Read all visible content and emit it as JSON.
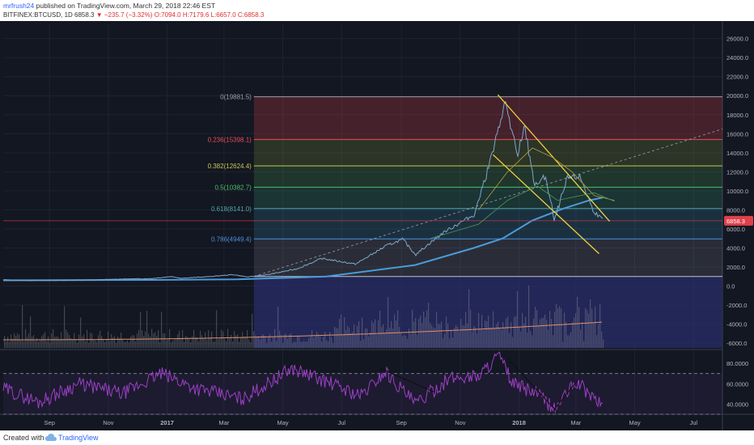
{
  "header": {
    "author": "mrfrush24",
    "published": "published on TradingView.com, March 29, 2018 22:46 EST",
    "symbol": "BITFINEX:BTCUSD, 1D",
    "last": "6858.3",
    "change": "−235.7 (−3.32%)",
    "ohlc": "O:7094.0 H:7179.6 L:6657.0 C:6858.3"
  },
  "footer": {
    "created": "Created with",
    "brand": "TradingView"
  },
  "colors": {
    "background": "#131722",
    "price_line": "#7fa7c8",
    "ma": "#4a9bd8",
    "trend": "#f4d03f",
    "rsi": "#9b3fc5",
    "last_badge": "#e0404a",
    "volume_box": "#2a2e6a"
  },
  "chart_data": [
    {
      "type": "line",
      "title": "",
      "series": [
        {
          "name": "",
          "x": [
            "2016-07-15",
            "2016-08-15",
            "2016-09-15",
            "2016-10-15",
            "2016-11-15",
            "2016-12-15",
            "2017-01-05",
            "2017-01-15",
            "2017-02-15",
            "2017-03-10",
            "2017-03-25",
            "2017-04-15",
            "2017-05-15",
            "2017-06-10",
            "2017-07-15",
            "2017-08-15",
            "2017-09-02",
            "2017-09-15",
            "2017-10-15",
            "2017-11-15",
            "2017-12-07",
            "2017-12-17",
            "2017-12-30",
            "2018-01-06",
            "2018-01-17",
            "2018-01-28",
            "2018-02-06",
            "2018-02-20",
            "2018-03-05",
            "2018-03-18",
            "2018-03-29"
          ],
          "values": [
            660,
            580,
            605,
            640,
            740,
            780,
            1000,
            820,
            1000,
            1200,
            950,
            1200,
            1800,
            2900,
            2300,
            4200,
            4900,
            3300,
            5700,
            7500,
            15000,
            19500,
            13500,
            17000,
            10500,
            11500,
            6900,
            11300,
            11500,
            8000,
            6858.3
          ]
        }
      ],
      "moving_average": {
        "x": [
          "2016-07-15",
          "2016-12-15",
          "2017-03-15",
          "2017-06-15",
          "2017-09-15",
          "2017-11-15",
          "2017-12-15",
          "2018-01-15",
          "2018-02-15",
          "2018-03-15",
          "2018-03-29"
        ],
        "values": [
          600,
          640,
          700,
          1000,
          2200,
          4000,
          5000,
          6900,
          8100,
          9000,
          9300
        ]
      },
      "fibonacci": [
        {
          "label": "0(19881.5)",
          "value": 19881.5,
          "color": "#9aa0a8"
        },
        {
          "label": "0.236(15398.1)",
          "value": 15398.1,
          "color": "#e84d56"
        },
        {
          "label": "0.382(12624.4)",
          "value": 12624.4,
          "color": "#c6c94a"
        },
        {
          "label": "0.5(10382.7)",
          "value": 10382.7,
          "color": "#4bbf6a"
        },
        {
          "label": "0.618(8141.0)",
          "value": 8141.0,
          "color": "#4aa8a8"
        },
        {
          "label": "0.786(4949.4)",
          "value": 4949.4,
          "color": "#4a8fd8"
        }
      ],
      "y_axis": {
        "ticks": [
          "26000.0",
          "24000.0",
          "22000.0",
          "20000.0",
          "18000.0",
          "16000.0",
          "14000.0",
          "12000.0",
          "10000.0",
          "8000.0",
          "6000.0",
          "4000.0",
          "2000.0",
          "0.0",
          "-2000.0",
          "-4000.0",
          "-6000.0"
        ],
        "range": [
          -6500,
          27500
        ]
      },
      "last_price_label": "6858.3",
      "x_axis": {
        "ticks": [
          "Sep",
          "Nov",
          "2017",
          "Mar",
          "May",
          "Jul",
          "Sep",
          "Nov",
          "2018",
          "Mar",
          "May",
          "Jul"
        ],
        "tick_dates": [
          "2016-09-01",
          "2016-11-01",
          "2017-01-01",
          "2017-03-01",
          "2017-05-01",
          "2017-07-01",
          "2017-09-01",
          "2017-11-01",
          "2018-01-01",
          "2018-03-01",
          "2018-05-01",
          "2018-07-01"
        ],
        "range": [
          "2016-07-15",
          "2018-07-31"
        ]
      },
      "grid": true
    },
    {
      "type": "line",
      "title": "",
      "series": [
        {
          "name": "",
          "x": [
            "2016-07-15",
            "2016-08-20",
            "2016-10-01",
            "2016-11-15",
            "2016-12-25",
            "2017-02-01",
            "2017-03-20",
            "2017-05-10",
            "2017-06-15",
            "2017-07-20",
            "2017-08-15",
            "2017-09-15",
            "2017-10-20",
            "2017-11-20",
            "2017-12-10",
            "2017-12-25",
            "2018-01-20",
            "2018-02-06",
            "2018-03-01",
            "2018-03-20",
            "2018-03-29"
          ],
          "values": [
            55,
            42,
            60,
            50,
            70,
            55,
            45,
            75,
            62,
            48,
            72,
            40,
            65,
            68,
            88,
            60,
            50,
            35,
            62,
            45,
            38
          ]
        }
      ],
      "y_axis": {
        "ticks": [
          "80.0000",
          "60.0000",
          "40.0000"
        ],
        "range": [
          30,
          92
        ]
      },
      "levels": [
        70,
        30
      ],
      "grid": true
    }
  ]
}
